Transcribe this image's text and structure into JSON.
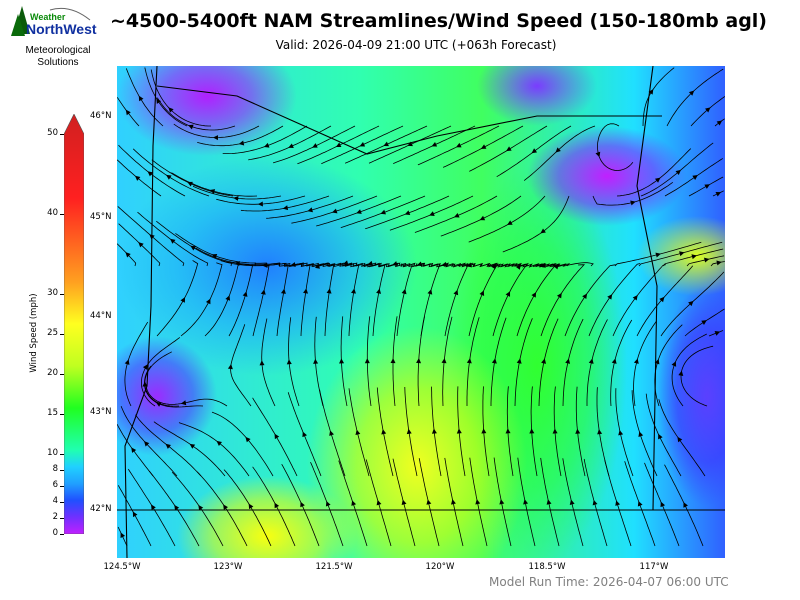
{
  "logo": {
    "text_top": "Weather",
    "text_main": "NorthWest",
    "subtitle_line1": "Meteorological",
    "subtitle_line2": "Solutions"
  },
  "title": "~4500-5400ft NAM Streamlines/Wind Speed (150-180mb agl)",
  "valid": "Valid: 2026-04-09 21:00 UTC  (+063h Forecast)",
  "colorbar": {
    "label": "Wind Speed (mph)",
    "ticks": [
      "0",
      "2",
      "4",
      "6",
      "8",
      "10",
      "15",
      "20",
      "25",
      "30",
      "40",
      "50"
    ],
    "colors": [
      "#c020ff",
      "#7030ff",
      "#2050ff",
      "#20a0ff",
      "#20d0ff",
      "#20ffb0",
      "#20ff20",
      "#c0ff20",
      "#ffff20",
      "#ffa020",
      "#ff2020",
      "#d02020"
    ]
  },
  "latitudes": [
    "46°N",
    "45°N",
    "44°N",
    "43°N",
    "42°N"
  ],
  "longitudes": [
    "124.5°W",
    "123°W",
    "121.5°W",
    "120°W",
    "118.5°W",
    "117°W"
  ],
  "model_run": "Model Run Time: 2026-04-07 06:00 UTC"
}
